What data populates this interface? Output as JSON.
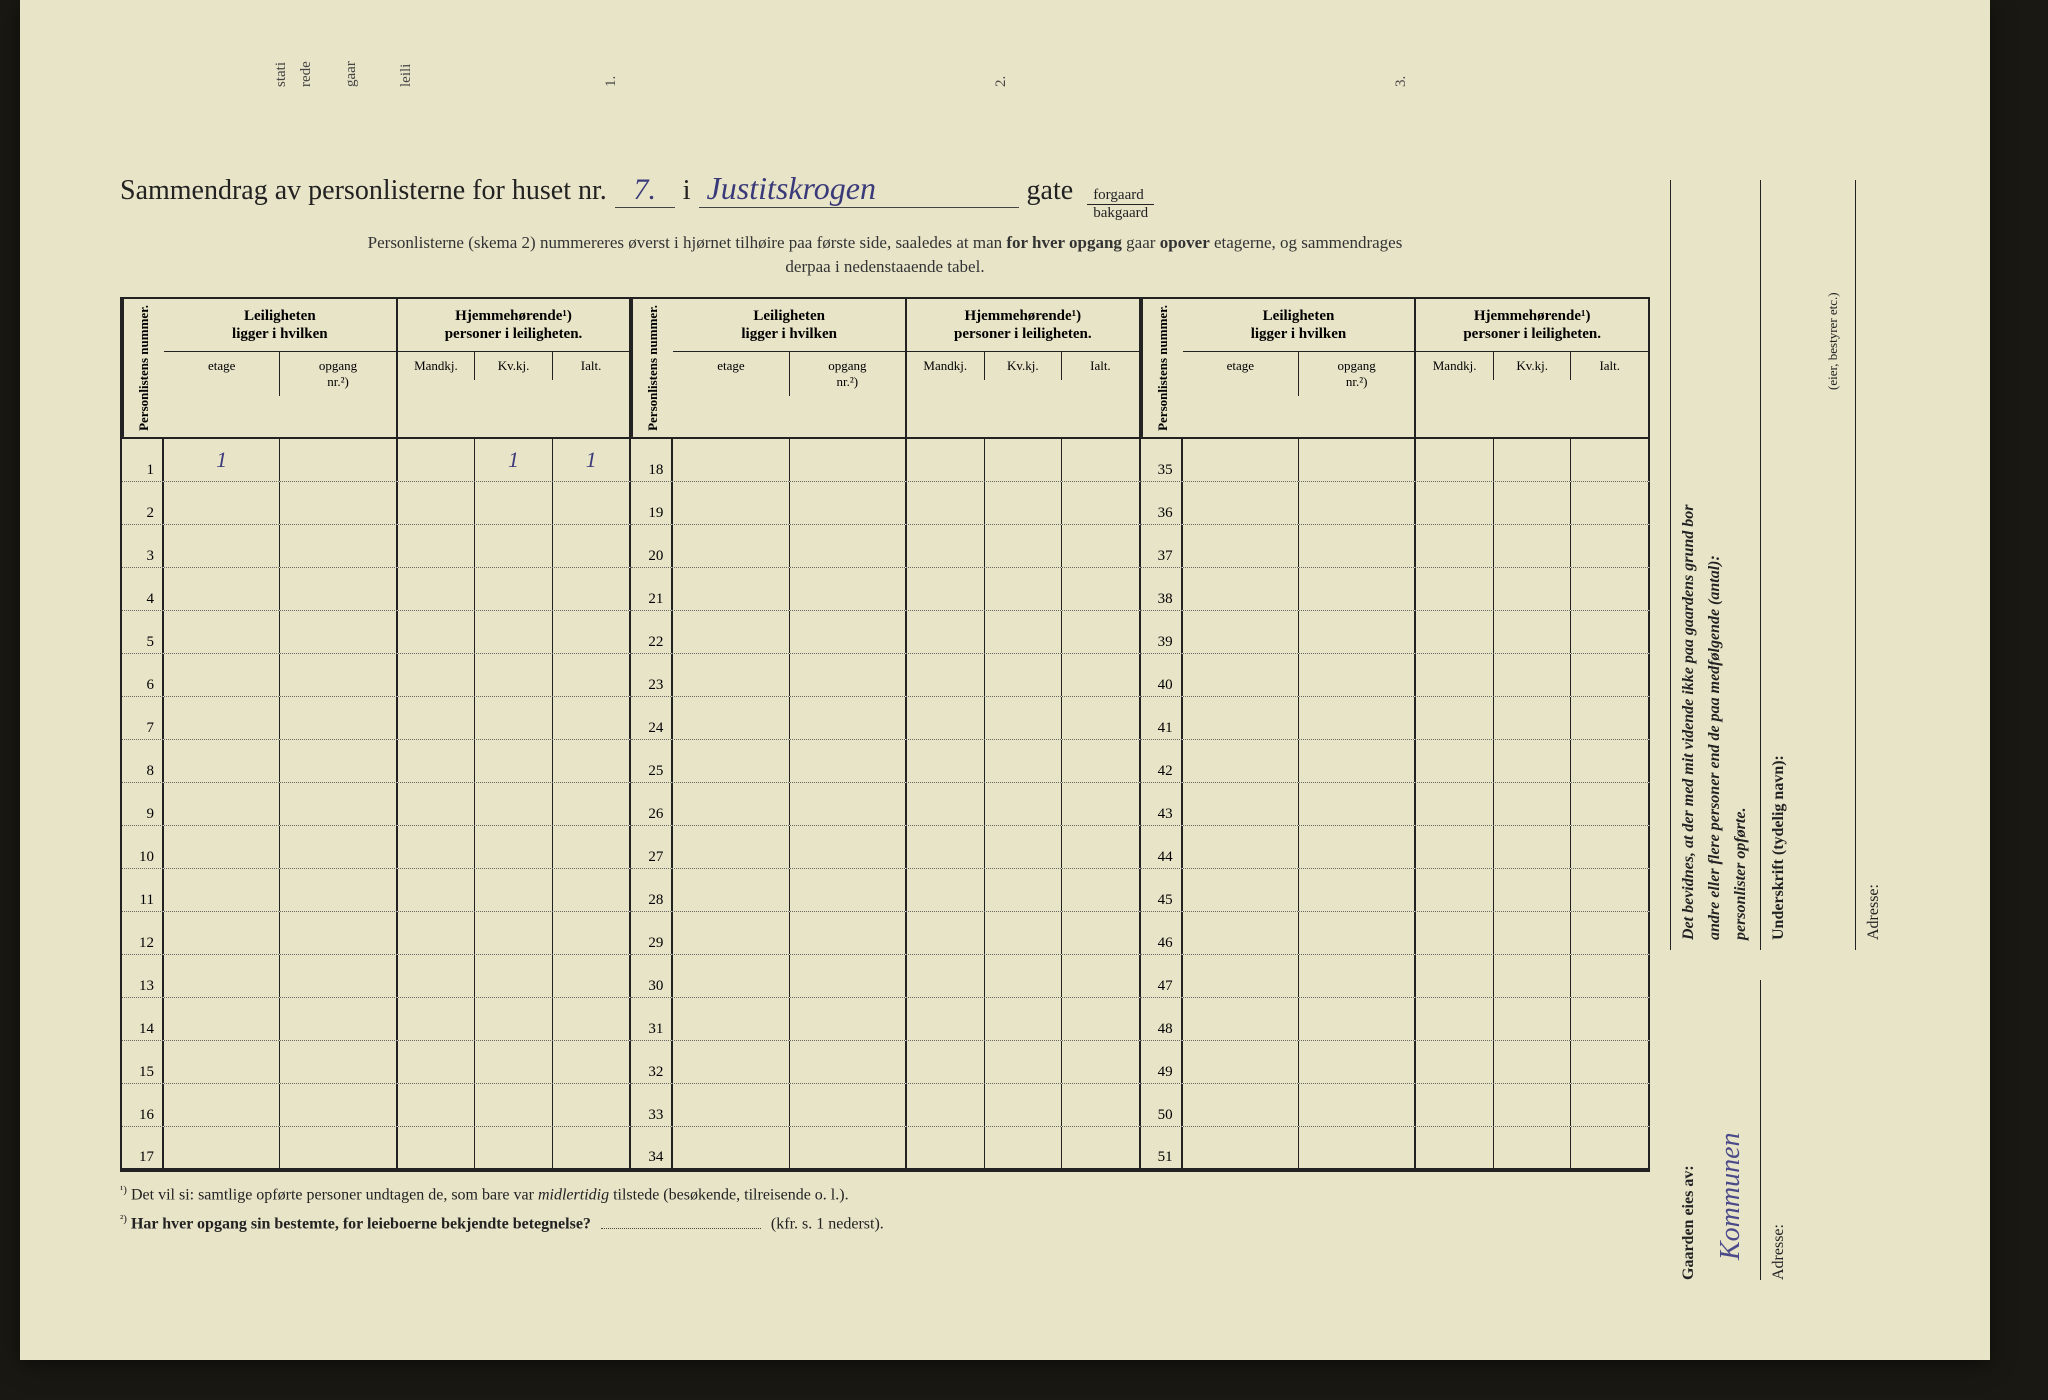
{
  "title": {
    "lead": "Sammendrag av personlisterne for huset nr.",
    "house_nr": "7.",
    "in_word": "i",
    "street_handwritten": "Justitskrogen",
    "gate_word": "gate",
    "fraction_top": "forgaard",
    "fraction_bottom": "bakgaard"
  },
  "subtext": {
    "line1a": "Personlisterne (skema 2) nummereres øverst i hjørnet tilhøire paa første side, saaledes at man ",
    "line1b": "for hver opgang",
    "line1c": " gaar ",
    "line1d": "opover",
    "line1e": " etagerne, og sammendrages",
    "line2": "derpaa i nedenstaaende tabel."
  },
  "headers": {
    "personlistens": "Personlistens\nnummer.",
    "leiligheten_title": "Leiligheten\nligger i hvilken",
    "hjemme_title": "Hjemmehørende¹)\npersoner i leiligheten.",
    "etage": "etage",
    "opgang": "opgang\nnr.²)",
    "mandkj": "Mandkj.",
    "kvkj": "Kv.kj.",
    "ialt": "Ialt."
  },
  "sections": [
    {
      "start": 1,
      "end": 17
    },
    {
      "start": 18,
      "end": 34
    },
    {
      "start": 35,
      "end": 51
    }
  ],
  "row1_marks": {
    "etage": "1",
    "kvkj": "1",
    "ialt": "1"
  },
  "footnotes": {
    "fn1_sup": "¹)",
    "fn1a": "Det vil si: samtlige opførte personer undtagen de, som bare var ",
    "fn1b": "midlertidig",
    "fn1c": " tilstede (besøkende, tilreisende o. l.).",
    "fn2_sup": "²)",
    "fn2a": "Har hver opgang sin bestemte, for leieboerne bekjendte betegnelse?",
    "fn2b": "(kfr. s. 1 nederst)."
  },
  "right_panel": {
    "decl1": "Det bevidnes, at der med mit vidende ikke paa gaardens grund bor",
    "decl2": "andre eller flere personer end de paa medfølgende (antal):",
    "decl3": "personlister opførte.",
    "underskrift": "Underskrift (tydelig navn):",
    "eier_etc": "(eier, bestyrer etc.)",
    "adresse": "Adresse:",
    "gaarden_eies": "Gaarden eies av:",
    "owner_handwritten": "Kommunen",
    "adresse2": "Adresse:"
  },
  "top_fragments": [
    "stati",
    "rede",
    "gaar",
    "leili",
    "1.",
    "2.",
    "3."
  ],
  "colors": {
    "paper": "#e8e4c8",
    "ink": "#222222",
    "handwriting": "#3a3a7a",
    "border": "#222222",
    "dotted": "#666666"
  }
}
